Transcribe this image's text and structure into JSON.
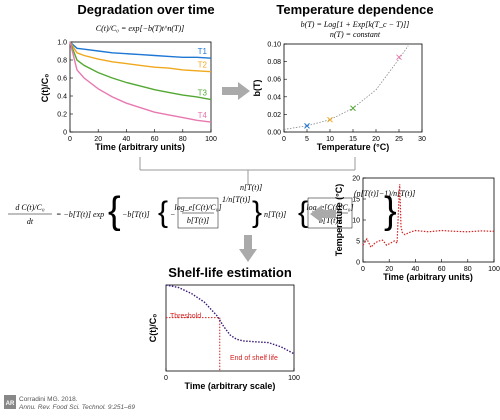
{
  "panels": {
    "degradation": {
      "title": "Degradation over time",
      "equation": "C(t)/C₀ = exp[−b(T)t^n(T)]",
      "xlabel": "Time (arbitrary units)",
      "ylabel": "C(t)/C₀",
      "xticks": [
        "0",
        "20",
        "40",
        "60",
        "80",
        "100"
      ],
      "yticks": [
        "0",
        "0.2",
        "0.4",
        "0.6",
        "0.8",
        "1.0"
      ],
      "series_labels": [
        "T1",
        "T2",
        "T3",
        "T4"
      ],
      "colors": [
        "#1f77d4",
        "#f0a81c",
        "#52a832",
        "#e878b0"
      ]
    },
    "temperature": {
      "title": "Temperature dependence",
      "equation_1": "b(T) = Log[1 + Exp[k(T_c − T)]]",
      "equation_2": "n(T) = constant",
      "xlabel": "Temperature (°C)",
      "ylabel": "b(T)",
      "xticks": [
        "0",
        "5",
        "10",
        "15",
        "20",
        "25",
        "30"
      ],
      "yticks": [
        "0.00",
        "0.02",
        "0.04",
        "0.06",
        "0.08",
        "0.10"
      ]
    },
    "profile": {
      "ylabel": "Temperature (°C)",
      "xlabel": "Time (arbitrary  units)",
      "xticks": [
        "0",
        "20",
        "40",
        "60",
        "80",
        "100"
      ],
      "yticks": [
        "0",
        "5",
        "10",
        "15",
        "20"
      ]
    },
    "shelflife": {
      "title": "Shelf-life estimation",
      "ylabel": "C(t)/C₀",
      "xlabel": "Time (arbitrary scale)",
      "xticks": [
        "0",
        "100"
      ],
      "threshold_label": "Threshold",
      "end_label": "End of shelf life"
    },
    "rate_equation": {
      "lhs_num": "d C(t)/C₀",
      "lhs_den": "dt",
      "body": "= −b[T(t)] exp"
    }
  },
  "credit": {
    "line1": "Corradini MG. 2018.",
    "line2": "Annu. Rev. Food Sci. Technol. 9:251–69",
    "logo": "AR"
  },
  "chart_data": [
    {
      "type": "line",
      "title": "Degradation over time",
      "xlabel": "Time (arbitrary units)",
      "ylabel": "C(t)/C₀",
      "xlim": [
        0,
        100
      ],
      "ylim": [
        0,
        1.0
      ],
      "x": [
        0,
        5,
        10,
        20,
        30,
        40,
        50,
        60,
        70,
        80,
        90,
        100
      ],
      "series": [
        {
          "name": "T1",
          "values": [
            1.0,
            0.93,
            0.92,
            0.9,
            0.88,
            0.87,
            0.86,
            0.85,
            0.84,
            0.83,
            0.83,
            0.82
          ]
        },
        {
          "name": "T2",
          "values": [
            1.0,
            0.88,
            0.85,
            0.81,
            0.78,
            0.76,
            0.74,
            0.72,
            0.71,
            0.69,
            0.68,
            0.67
          ]
        },
        {
          "name": "T3",
          "values": [
            1.0,
            0.8,
            0.74,
            0.66,
            0.6,
            0.55,
            0.51,
            0.47,
            0.44,
            0.41,
            0.39,
            0.36
          ]
        },
        {
          "name": "T4",
          "values": [
            1.0,
            0.69,
            0.6,
            0.48,
            0.39,
            0.32,
            0.27,
            0.22,
            0.19,
            0.16,
            0.13,
            0.11
          ]
        }
      ]
    },
    {
      "type": "scatter",
      "title": "Temperature dependence",
      "xlabel": "Temperature (°C)",
      "ylabel": "b(T)",
      "xlim": [
        0,
        30
      ],
      "ylim": [
        0,
        0.1
      ],
      "points": [
        {
          "x": 5,
          "y": 0.007,
          "color": "#1f77d4"
        },
        {
          "x": 10,
          "y": 0.014,
          "color": "#f0a81c"
        },
        {
          "x": 15,
          "y": 0.027,
          "color": "#52a832"
        },
        {
          "x": 25,
          "y": 0.085,
          "color": "#e878b0"
        }
      ],
      "fit": {
        "x": [
          0,
          5,
          10,
          15,
          20,
          25,
          27
        ],
        "y": [
          0.003,
          0.007,
          0.014,
          0.027,
          0.048,
          0.083,
          0.098
        ]
      }
    },
    {
      "type": "line",
      "xlabel": "Time (arbitrary  units)",
      "ylabel": "Temperature (°C)",
      "xlim": [
        0,
        100
      ],
      "ylim": [
        0,
        20
      ],
      "x": [
        0,
        3,
        6,
        9,
        12,
        15,
        18,
        21,
        24,
        26,
        27,
        28,
        29,
        30,
        32,
        35,
        40,
        50,
        60,
        70,
        80,
        90,
        100
      ],
      "series": [
        {
          "name": "",
          "values": [
            4,
            5.5,
            3.5,
            4.5,
            5,
            5.2,
            4,
            4.5,
            5,
            4.5,
            12,
            18.5,
            8.5,
            7,
            6.5,
            7,
            7.5,
            7.2,
            7.5,
            7.3,
            7.2,
            7.4,
            7.3
          ]
        }
      ]
    },
    {
      "type": "line",
      "title": "Shelf-life estimation",
      "xlabel": "Time (arbitrary scale)",
      "ylabel": "C(t)/C₀",
      "xlim": [
        0,
        100
      ],
      "ylim": [
        0,
        1.0
      ],
      "threshold": 0.62,
      "end_of_shelf_life": 42,
      "x": [
        0,
        10,
        20,
        30,
        35,
        40,
        45,
        50,
        55,
        60,
        70,
        80,
        90,
        100
      ],
      "series": [
        {
          "name": "",
          "values": [
            1.0,
            0.97,
            0.9,
            0.8,
            0.72,
            0.64,
            0.52,
            0.42,
            0.37,
            0.35,
            0.34,
            0.33,
            0.28,
            0.2
          ]
        }
      ]
    }
  ]
}
